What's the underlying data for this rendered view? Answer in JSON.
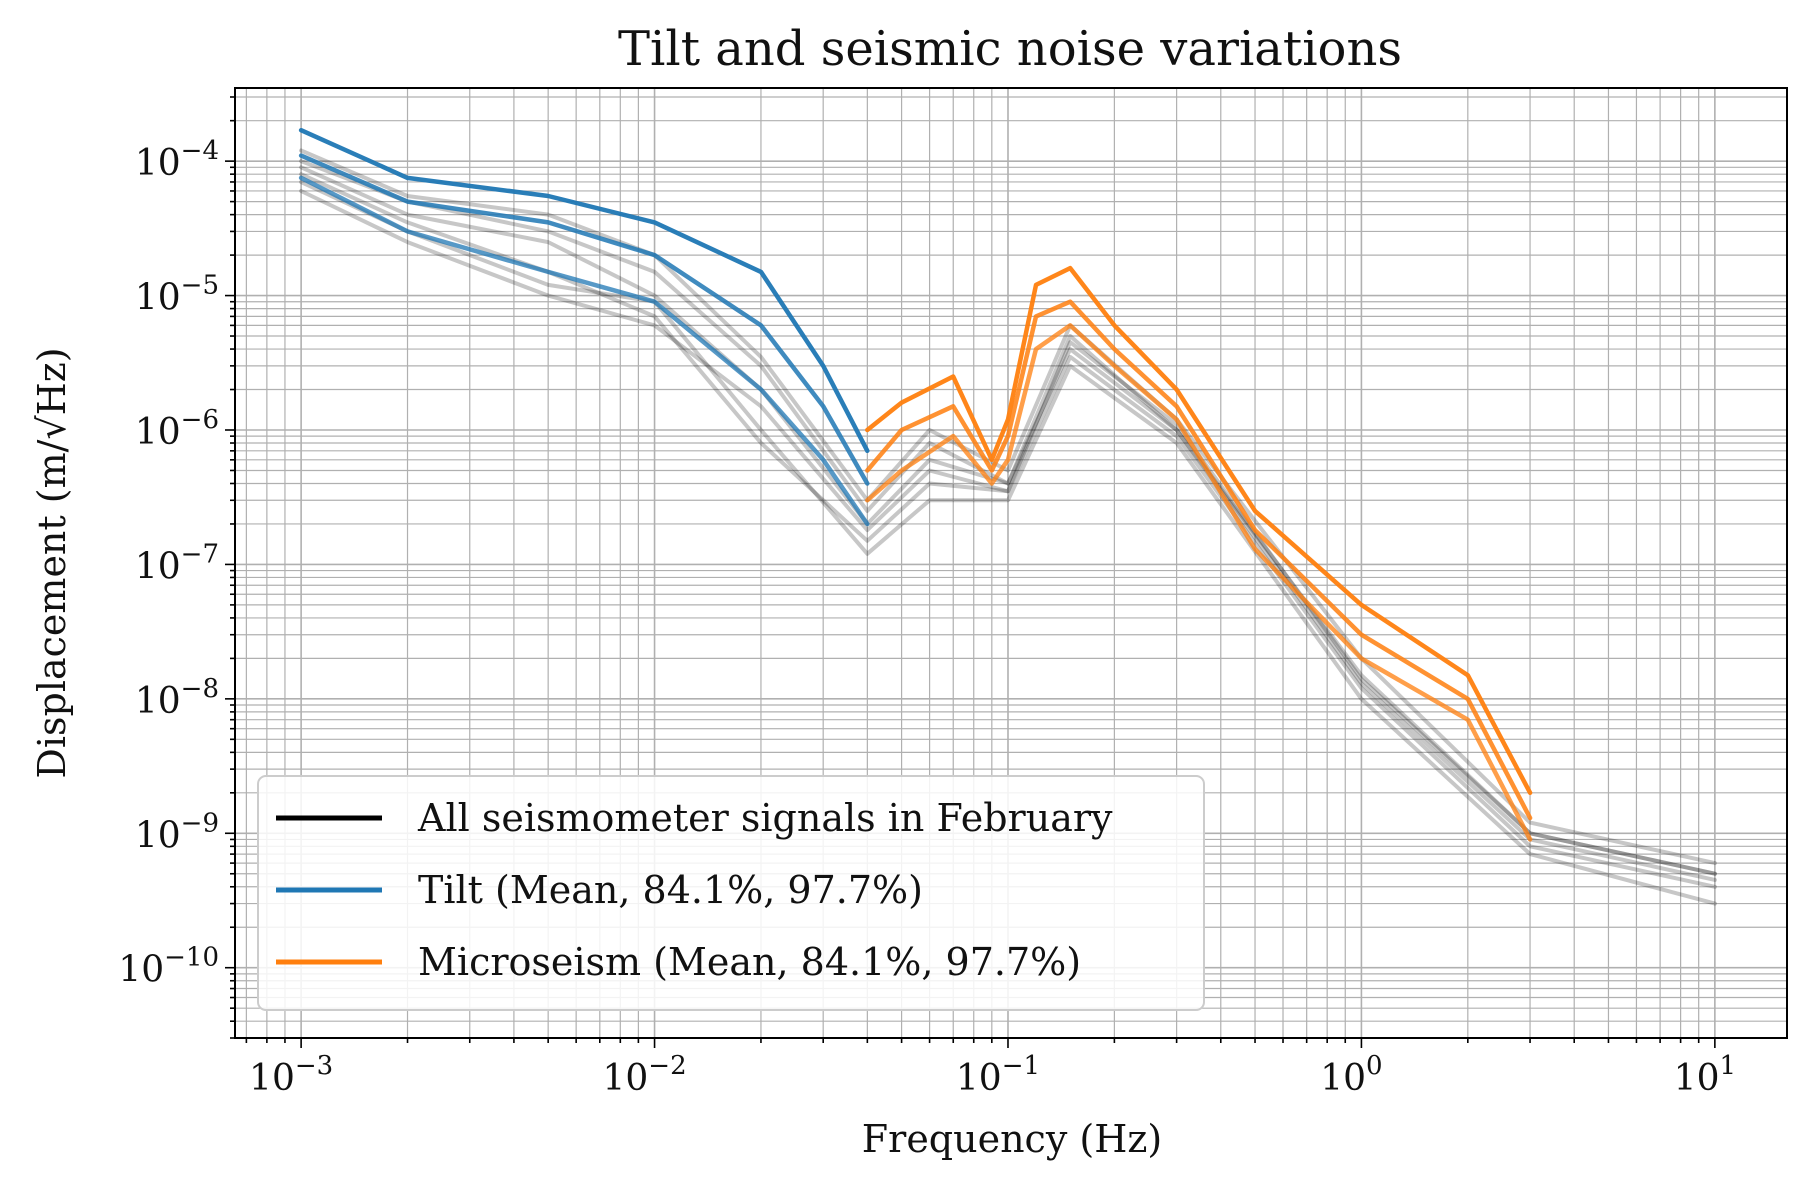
{
  "chart_data": {
    "type": "line",
    "title": "Tilt and seismic noise variations",
    "xlabel": "Frequency (Hz)",
    "ylabel": "Displacement (m/√Hz)",
    "x_scale": "log",
    "y_scale": "log",
    "xlim": [
      0.00065,
      16
    ],
    "ylim": [
      3e-11,
      0.00035
    ],
    "grid": true,
    "legend_placement": "lower-left",
    "x_ticks": [
      {
        "base": "10",
        "exp": "−3"
      },
      {
        "base": "10",
        "exp": "−2"
      },
      {
        "base": "10",
        "exp": "−1"
      },
      {
        "base": "10",
        "exp": "0"
      },
      {
        "base": "10",
        "exp": "1"
      }
    ],
    "y_ticks": [
      {
        "base": "10",
        "exp": "−4"
      },
      {
        "base": "10",
        "exp": "−5"
      },
      {
        "base": "10",
        "exp": "−6"
      },
      {
        "base": "10",
        "exp": "−7"
      },
      {
        "base": "10",
        "exp": "−8"
      },
      {
        "base": "10",
        "exp": "−9"
      },
      {
        "base": "10",
        "exp": "−10"
      }
    ],
    "legend": [
      {
        "label": "All seismometer signals in February",
        "color": "#000000"
      },
      {
        "label": "Tilt (Mean, 84.1%, 97.7%)",
        "color": "#1f77b4"
      },
      {
        "label": "Microseism (Mean, 84.1%, 97.7%)",
        "color": "#ff7f0e"
      }
    ],
    "series": [
      {
        "group": "seismometer",
        "color": "#000000",
        "opacity": 0.22,
        "x": [
          0.001,
          0.002,
          0.005,
          0.01,
          0.02,
          0.04,
          0.06,
          0.1,
          0.15,
          0.3,
          1,
          3,
          10
        ],
        "y": [
          0.0001,
          5e-05,
          3e-05,
          1.5e-05,
          3e-06,
          2.5e-07,
          8e-07,
          4e-07,
          5e-06,
          1e-06,
          1.5e-08,
          1e-09,
          5e-10
        ]
      },
      {
        "group": "seismometer",
        "color": "#000000",
        "opacity": 0.22,
        "x": [
          0.001,
          0.002,
          0.005,
          0.01,
          0.02,
          0.04,
          0.06,
          0.1,
          0.15,
          0.3,
          1,
          3,
          10
        ],
        "y": [
          0.00012,
          5.5e-05,
          4e-05,
          2e-05,
          3.5e-06,
          3e-07,
          1e-06,
          5e-07,
          6e-06,
          1.2e-06,
          2e-08,
          1.2e-09,
          6e-10
        ]
      },
      {
        "group": "seismometer",
        "color": "#000000",
        "opacity": 0.22,
        "x": [
          0.001,
          0.002,
          0.005,
          0.01,
          0.02,
          0.04,
          0.06,
          0.1,
          0.15,
          0.3,
          1,
          3,
          10
        ],
        "y": [
          7e-05,
          3e-05,
          1.2e-05,
          9e-06,
          1e-06,
          1.2e-07,
          3e-07,
          3e-07,
          3e-06,
          8e-07,
          1e-08,
          7e-10,
          3e-10
        ]
      },
      {
        "group": "seismometer",
        "color": "#000000",
        "opacity": 0.22,
        "x": [
          0.001,
          0.002,
          0.005,
          0.01,
          0.02,
          0.04,
          0.06,
          0.1,
          0.15,
          0.3,
          1,
          3,
          10
        ],
        "y": [
          8e-05,
          3.5e-05,
          1.5e-05,
          7e-06,
          8e-07,
          1.5e-07,
          4e-07,
          3.5e-07,
          3.5e-06,
          9e-07,
          1.2e-08,
          8e-10,
          4e-10
        ]
      },
      {
        "group": "seismometer",
        "color": "#000000",
        "opacity": 0.22,
        "x": [
          0.001,
          0.002,
          0.005,
          0.01,
          0.02,
          0.04,
          0.06,
          0.1,
          0.15,
          0.3,
          1,
          3,
          10
        ],
        "y": [
          9e-05,
          4e-05,
          2.5e-05,
          1e-05,
          2e-06,
          2e-07,
          6e-07,
          4e-07,
          4e-06,
          1e-06,
          1.3e-08,
          9e-10,
          4.5e-10
        ]
      },
      {
        "group": "seismometer",
        "color": "#000000",
        "opacity": 0.22,
        "x": [
          0.001,
          0.002,
          0.005,
          0.01,
          0.02,
          0.04,
          0.06,
          0.1,
          0.15,
          0.3,
          1,
          3,
          10
        ],
        "y": [
          6e-05,
          2.5e-05,
          1e-05,
          6e-06,
          1.5e-06,
          1.8e-07,
          5e-07,
          3.5e-07,
          4.5e-06,
          1.1e-06,
          1.4e-08,
          1e-09,
          5e-10
        ]
      },
      {
        "group": "tilt",
        "name": "Tilt (Mean, 84.1%, 97.7%)",
        "color": "#1f77b4",
        "opacity": 0.95,
        "x": [
          0.001,
          0.002,
          0.005,
          0.01,
          0.02,
          0.03,
          0.04
        ],
        "y": [
          0.00017,
          7.5e-05,
          5.5e-05,
          3.5e-05,
          1.5e-05,
          3e-06,
          7e-07
        ]
      },
      {
        "group": "tilt",
        "color": "#1f77b4",
        "opacity": 0.85,
        "x": [
          0.001,
          0.002,
          0.005,
          0.01,
          0.02,
          0.03,
          0.04
        ],
        "y": [
          0.00011,
          5e-05,
          3.5e-05,
          2e-05,
          6e-06,
          1.5e-06,
          4e-07
        ]
      },
      {
        "group": "tilt",
        "color": "#1f77b4",
        "opacity": 0.75,
        "x": [
          0.001,
          0.002,
          0.005,
          0.01,
          0.02,
          0.03,
          0.04
        ],
        "y": [
          7.5e-05,
          3e-05,
          1.5e-05,
          9e-06,
          2e-06,
          6e-07,
          2e-07
        ]
      },
      {
        "group": "microseism",
        "name": "Microseism (Mean, 84.1%, 97.7%)",
        "color": "#ff7f0e",
        "opacity": 0.95,
        "x": [
          0.04,
          0.05,
          0.07,
          0.09,
          0.1,
          0.12,
          0.15,
          0.2,
          0.3,
          0.5,
          1,
          2,
          3
        ],
        "y": [
          1e-06,
          1.6e-06,
          2.5e-06,
          6e-07,
          1.2e-06,
          1.2e-05,
          1.6e-05,
          6e-06,
          2e-06,
          2.5e-07,
          5e-08,
          1.5e-08,
          2e-09
        ]
      },
      {
        "group": "microseism",
        "color": "#ff7f0e",
        "opacity": 0.85,
        "x": [
          0.04,
          0.05,
          0.07,
          0.09,
          0.1,
          0.12,
          0.15,
          0.2,
          0.3,
          0.5,
          1,
          2,
          3
        ],
        "y": [
          5e-07,
          1e-06,
          1.5e-06,
          5e-07,
          9e-07,
          7e-06,
          9e-06,
          4e-06,
          1.5e-06,
          1.8e-07,
          3e-08,
          1e-08,
          1.3e-09
        ]
      },
      {
        "group": "microseism",
        "color": "#ff7f0e",
        "opacity": 0.75,
        "x": [
          0.04,
          0.05,
          0.07,
          0.09,
          0.1,
          0.12,
          0.15,
          0.2,
          0.3,
          0.5,
          1,
          2,
          3
        ],
        "y": [
          3e-07,
          5e-07,
          9e-07,
          4e-07,
          6e-07,
          4e-06,
          6e-06,
          3e-06,
          1.2e-06,
          1.3e-07,
          2e-08,
          7e-09,
          9e-10
        ]
      }
    ]
  }
}
